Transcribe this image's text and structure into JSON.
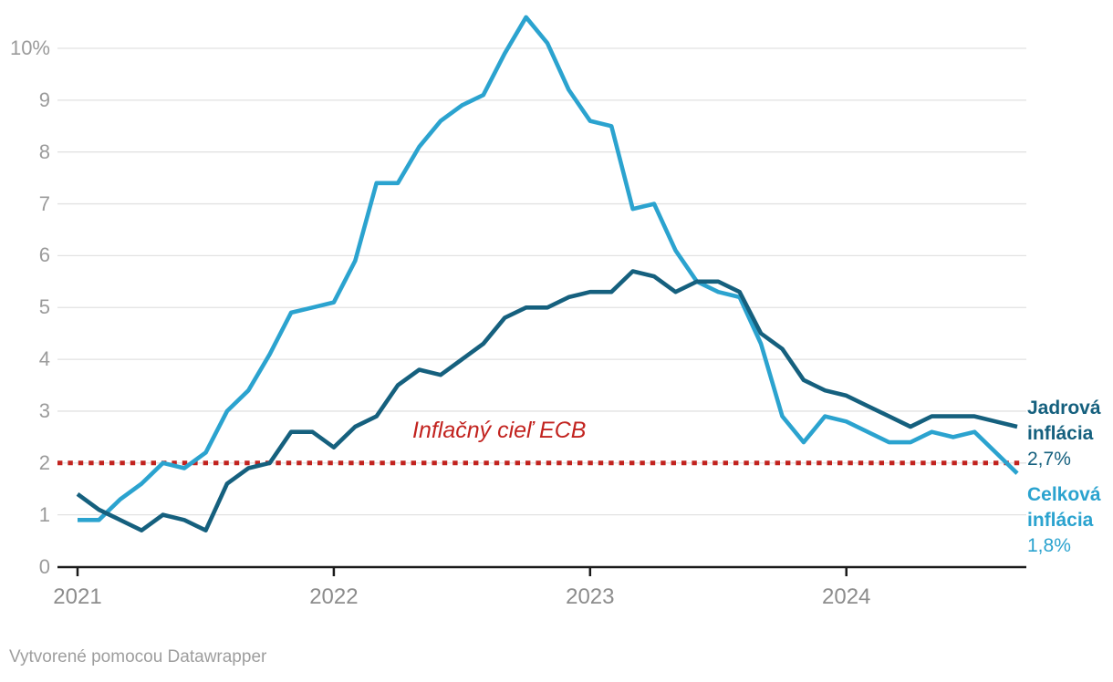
{
  "chart_data": {
    "type": "line",
    "title": "",
    "unit": "%",
    "x": [
      "2021-01",
      "2021-02",
      "2021-03",
      "2021-04",
      "2021-05",
      "2021-06",
      "2021-07",
      "2021-08",
      "2021-09",
      "2021-10",
      "2021-11",
      "2021-12",
      "2022-01",
      "2022-02",
      "2022-03",
      "2022-04",
      "2022-05",
      "2022-06",
      "2022-07",
      "2022-08",
      "2022-09",
      "2022-10",
      "2022-11",
      "2022-12",
      "2023-01",
      "2023-02",
      "2023-03",
      "2023-04",
      "2023-05",
      "2023-06",
      "2023-07",
      "2023-08",
      "2023-09",
      "2023-10",
      "2023-11",
      "2023-12",
      "2024-01",
      "2024-02",
      "2024-03",
      "2024-04",
      "2024-05",
      "2024-06",
      "2024-07",
      "2024-08",
      "2024-09"
    ],
    "series": [
      {
        "name": "Celková inflácia",
        "color": "#2ba3cf",
        "values": [
          0.9,
          0.9,
          1.3,
          1.6,
          2.0,
          1.9,
          2.2,
          3.0,
          3.4,
          4.1,
          4.9,
          5.0,
          5.1,
          5.9,
          7.4,
          7.4,
          8.1,
          8.6,
          8.9,
          9.1,
          9.9,
          10.6,
          10.1,
          9.2,
          8.6,
          8.5,
          6.9,
          7.0,
          6.1,
          5.5,
          5.3,
          5.2,
          4.3,
          2.9,
          2.4,
          2.9,
          2.8,
          2.6,
          2.4,
          2.4,
          2.6,
          2.5,
          2.6,
          2.2,
          1.8
        ]
      },
      {
        "name": "Jadrová inflácia",
        "color": "#15607e",
        "values": [
          1.4,
          1.1,
          0.9,
          0.7,
          1.0,
          0.9,
          0.7,
          1.6,
          1.9,
          2.0,
          2.6,
          2.6,
          2.3,
          2.7,
          2.9,
          3.5,
          3.8,
          3.7,
          4.0,
          4.3,
          4.8,
          5.0,
          5.0,
          5.2,
          5.3,
          5.3,
          5.7,
          5.6,
          5.3,
          5.5,
          5.5,
          5.3,
          4.5,
          4.2,
          3.6,
          3.4,
          3.3,
          3.1,
          2.9,
          2.7,
          2.9,
          2.9,
          2.9,
          2.8,
          2.7
        ]
      }
    ],
    "target_line": {
      "value": 2,
      "label": "Inflačný cieľ ECB",
      "color": "#c2231f",
      "style": "dotted"
    },
    "ylim": [
      0,
      10.65
    ],
    "yticks": [
      0,
      1,
      2,
      3,
      4,
      5,
      6,
      7,
      8,
      9,
      10
    ],
    "y_tick_labels": [
      "0",
      "1",
      "2",
      "3",
      "4",
      "5",
      "6",
      "7",
      "8",
      "9",
      "10%"
    ],
    "xticks": [
      "2021",
      "2022",
      "2023",
      "2024"
    ],
    "grid": "horizontal",
    "grid_color": "#e2e2e2",
    "axis_color": "#1a1a1a",
    "legend_position": "right-end-labels"
  },
  "series_labels": {
    "jadrova": {
      "line1": "Jadrová",
      "line2": "inflácia",
      "value": "2,7%"
    },
    "celkova": {
      "line1": "Celková",
      "line2": "inflácia",
      "value": "1,8%"
    }
  },
  "footer": {
    "text": "Vytvorené pomocou Datawrapper"
  }
}
